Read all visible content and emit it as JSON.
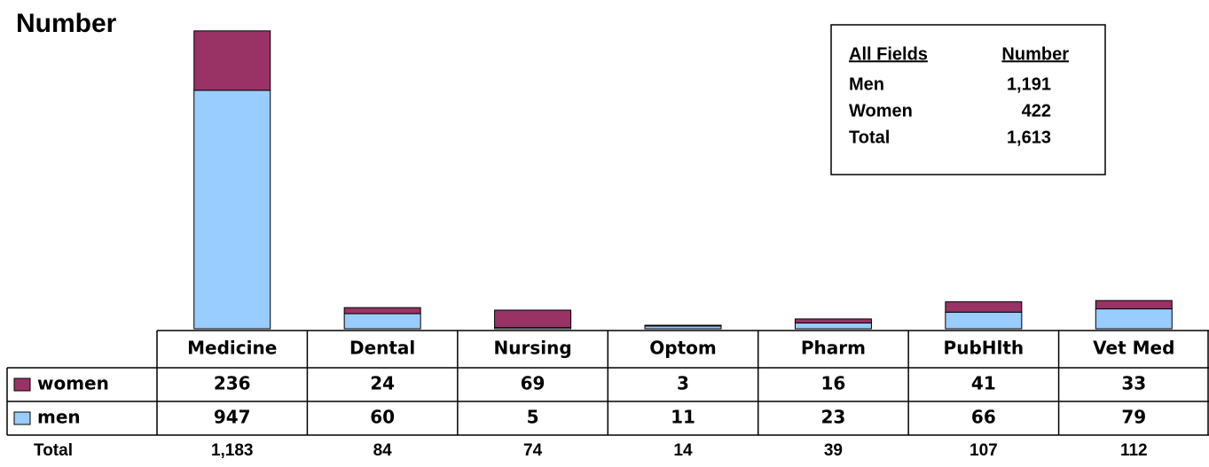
{
  "chart_data": {
    "type": "bar",
    "stacked": true,
    "title": "Number",
    "categories": [
      "Medicine",
      "Dental",
      "Nursing",
      "Optom",
      "Pharm",
      "PubHlth",
      "Vet Med"
    ],
    "series": [
      {
        "name": "women",
        "color": "#993366",
        "values": [
          236,
          24,
          69,
          3,
          16,
          41,
          33
        ]
      },
      {
        "name": "men",
        "color": "#99ccff",
        "values": [
          947,
          60,
          5,
          11,
          23,
          66,
          79
        ]
      }
    ],
    "ylim": [
      0,
      1200
    ],
    "totals_label": "Total",
    "totals": [
      "1,183",
      "84",
      "74",
      "14",
      "39",
      "107",
      "112"
    ],
    "summary": {
      "header": [
        "All Fields",
        "Number"
      ],
      "rows": [
        [
          "Men",
          "1,191"
        ],
        [
          "Women",
          "422"
        ],
        [
          "Total",
          "1,613"
        ]
      ]
    }
  }
}
